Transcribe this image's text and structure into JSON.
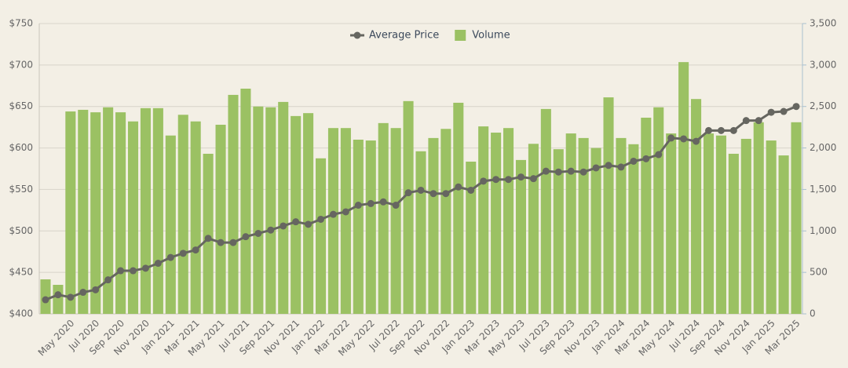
{
  "chart_data": {
    "type": "bar-line",
    "categories": [
      null,
      null,
      "May 2020",
      null,
      "Jul 2020",
      null,
      "Sep 2020",
      null,
      "Nov 2020",
      null,
      "Jan 2021",
      null,
      "Mar 2021",
      null,
      "May 2021",
      null,
      "Jul 2021",
      null,
      "Sep 2021",
      null,
      "Nov 2021",
      null,
      "Jan 2022",
      null,
      "Mar 2022",
      null,
      "May 2022",
      null,
      "Jul 2022",
      null,
      "Sep 2022",
      null,
      "Nov 2022",
      null,
      "Jan 2023",
      null,
      "Mar 2023",
      null,
      "May 2023",
      null,
      "Jul 2023",
      null,
      "Sep 2023",
      null,
      "Nov 2023",
      null,
      "Jan 2024",
      null,
      "Mar 2024",
      null,
      "May 2024",
      null,
      "Jul 2024",
      null,
      "Sep 2024",
      null,
      "Nov 2024",
      null,
      "Jan 2025",
      null,
      "Mar 2025"
    ],
    "series": [
      {
        "name": "Average Price",
        "type": "line",
        "color": "#666660",
        "axis": "y",
        "values": [
          417,
          423,
          420,
          426,
          429,
          441,
          452,
          452,
          455,
          461,
          468,
          473,
          477,
          491,
          486,
          486,
          493,
          497,
          501,
          506,
          511,
          508,
          514,
          520,
          523,
          531,
          533,
          535,
          531,
          546,
          549,
          545,
          545,
          553,
          549,
          560,
          562,
          562,
          565,
          563,
          572,
          571,
          572,
          571,
          576,
          579,
          577,
          584,
          587,
          592,
          612,
          611,
          608,
          621,
          621,
          621,
          633,
          633,
          643,
          644,
          650
        ]
      },
      {
        "name": "Volume",
        "type": "bar",
        "color": "#9bc163",
        "axis": "y2",
        "values": [
          416,
          350,
          2440,
          2460,
          2430,
          2490,
          2430,
          2320,
          2480,
          2480,
          2150,
          2400,
          2320,
          1930,
          2280,
          2640,
          2715,
          2500,
          2490,
          2555,
          2385,
          2420,
          1875,
          2240,
          2240,
          2100,
          2090,
          2300,
          2240,
          2565,
          1960,
          2120,
          2230,
          2545,
          1835,
          2260,
          2185,
          2240,
          1855,
          2050,
          2470,
          1985,
          2175,
          2120,
          2000,
          2610,
          2120,
          2045,
          2365,
          2490,
          2175,
          3035,
          2590,
          2175,
          2150,
          1930,
          2110,
          2310,
          2090,
          1910,
          2310
        ]
      }
    ],
    "ylim": [
      400,
      750
    ],
    "yticks": [
      {
        "value": 400,
        "label": "$400"
      },
      {
        "value": 450,
        "label": "$450"
      },
      {
        "value": 500,
        "label": "$500"
      },
      {
        "value": 550,
        "label": "$550"
      },
      {
        "value": 600,
        "label": "$600"
      },
      {
        "value": 650,
        "label": "$650"
      },
      {
        "value": 700,
        "label": "$700"
      },
      {
        "value": 750,
        "label": "$750"
      }
    ],
    "y2lim": [
      0,
      3500
    ],
    "y2ticks": [
      0,
      500,
      {
        "value": 1000,
        "label": "1,000"
      },
      {
        "value": 1500,
        "label": "1,500"
      },
      {
        "value": 2000,
        "label": "2,000"
      },
      {
        "value": 2500,
        "label": "2,500"
      },
      {
        "value": 3000,
        "label": "3,000"
      },
      {
        "value": 3500,
        "label": "3,500"
      }
    ],
    "grid": true,
    "legend": "top"
  }
}
